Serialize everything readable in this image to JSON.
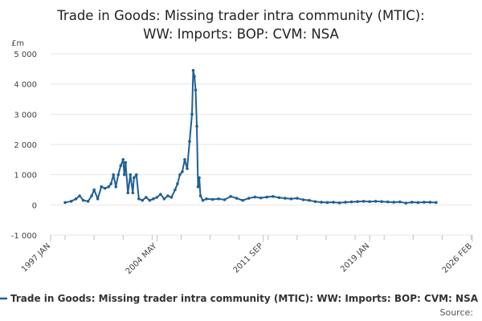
{
  "chart_data": {
    "type": "line",
    "title": "Trade in Goods: Missing trader intra community (MTIC):",
    "title_line2": "WW: Imports: BOP: CVM: NSA",
    "ylabel": "£m",
    "xlabel": "",
    "ylim": [
      -1000,
      5000
    ],
    "yticks": [
      -1000,
      0,
      1000,
      2000,
      3000,
      4000,
      5000
    ],
    "ytick_labels": [
      "-1 000",
      "0",
      "1 000",
      "2 000",
      "3 000",
      "4 000",
      "5 000"
    ],
    "xticks": [
      "1997 JAN",
      "2004 MAY",
      "2011 SEP",
      "2019 JAN",
      "2026 FEB"
    ],
    "grid": true,
    "legend_position": "bottom",
    "color": "#206095",
    "series": [
      {
        "name": "Trade in Goods: Missing trader intra community (MTIC): WW: Imports: BOP: CVM: NSA",
        "points": [
          [
            "1998-01",
            80
          ],
          [
            "1998-06",
            120
          ],
          [
            "1998-10",
            200
          ],
          [
            "1999-01",
            300
          ],
          [
            "1999-04",
            150
          ],
          [
            "1999-08",
            120
          ],
          [
            "1999-11",
            300
          ],
          [
            "2000-01",
            500
          ],
          [
            "2000-04",
            200
          ],
          [
            "2000-07",
            600
          ],
          [
            "2000-10",
            550
          ],
          [
            "2001-01",
            600
          ],
          [
            "2001-03",
            700
          ],
          [
            "2001-05",
            1000
          ],
          [
            "2001-07",
            600
          ],
          [
            "2001-09",
            1000
          ],
          [
            "2001-11",
            1300
          ],
          [
            "2002-01",
            1500
          ],
          [
            "2002-02",
            1000
          ],
          [
            "2002-03",
            1400
          ],
          [
            "2002-05",
            400
          ],
          [
            "2002-07",
            1000
          ],
          [
            "2002-09",
            400
          ],
          [
            "2002-10",
            900
          ],
          [
            "2002-12",
            1000
          ],
          [
            "2003-02",
            200
          ],
          [
            "2003-05",
            150
          ],
          [
            "2003-08",
            250
          ],
          [
            "2003-11",
            150
          ],
          [
            "2004-02",
            200
          ],
          [
            "2004-05",
            250
          ],
          [
            "2004-08",
            350
          ],
          [
            "2004-11",
            200
          ],
          [
            "2005-02",
            300
          ],
          [
            "2005-05",
            250
          ],
          [
            "2005-08",
            500
          ],
          [
            "2005-10",
            700
          ],
          [
            "2005-12",
            1000
          ],
          [
            "2006-02",
            1100
          ],
          [
            "2006-04",
            1500
          ],
          [
            "2006-06",
            1200
          ],
          [
            "2006-08",
            2100
          ],
          [
            "2006-10",
            3000
          ],
          [
            "2006-11",
            4450
          ],
          [
            "2006-12",
            4250
          ],
          [
            "2007-01",
            3800
          ],
          [
            "2007-02",
            2600
          ],
          [
            "2007-03",
            600
          ],
          [
            "2007-04",
            900
          ],
          [
            "2007-05",
            300
          ],
          [
            "2007-07",
            150
          ],
          [
            "2007-10",
            200
          ],
          [
            "2008-03",
            180
          ],
          [
            "2008-08",
            200
          ],
          [
            "2009-01",
            170
          ],
          [
            "2009-06",
            280
          ],
          [
            "2009-11",
            220
          ],
          [
            "2010-04",
            150
          ],
          [
            "2010-09",
            220
          ],
          [
            "2011-02",
            260
          ],
          [
            "2011-07",
            230
          ],
          [
            "2011-12",
            260
          ],
          [
            "2012-05",
            280
          ],
          [
            "2012-10",
            240
          ],
          [
            "2013-03",
            220
          ],
          [
            "2013-08",
            200
          ],
          [
            "2014-01",
            220
          ],
          [
            "2014-06",
            170
          ],
          [
            "2014-11",
            150
          ],
          [
            "2015-04",
            110
          ],
          [
            "2015-09",
            90
          ],
          [
            "2016-02",
            80
          ],
          [
            "2016-07",
            90
          ],
          [
            "2016-12",
            70
          ],
          [
            "2017-05",
            90
          ],
          [
            "2017-10",
            100
          ],
          [
            "2018-03",
            110
          ],
          [
            "2018-08",
            120
          ],
          [
            "2019-01",
            110
          ],
          [
            "2019-06",
            120
          ],
          [
            "2019-11",
            110
          ],
          [
            "2020-04",
            100
          ],
          [
            "2020-09",
            90
          ],
          [
            "2021-02",
            100
          ],
          [
            "2021-07",
            60
          ],
          [
            "2021-12",
            90
          ],
          [
            "2022-05",
            80
          ],
          [
            "2022-10",
            90
          ],
          [
            "2023-03",
            90
          ],
          [
            "2023-08",
            80
          ]
        ]
      }
    ],
    "source_label": "Source:"
  }
}
